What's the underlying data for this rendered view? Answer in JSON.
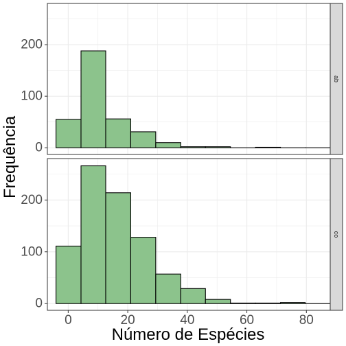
{
  "chart_data": {
    "type": "bar",
    "subtype": "histogram-faceted",
    "xlabel": "Número de Espécies",
    "ylabel": "Frequência",
    "xlim": [
      -7,
      88
    ],
    "ylim": [
      -13,
      280
    ],
    "x_ticks": [
      0,
      20,
      40,
      60,
      80
    ],
    "y_ticks": [
      0,
      100,
      200
    ],
    "bins": [
      [
        -4.1,
        4.3
      ],
      [
        4.3,
        12.6
      ],
      [
        12.6,
        21.0
      ],
      [
        21.0,
        29.4
      ],
      [
        29.4,
        37.8
      ],
      [
        37.8,
        46.1
      ],
      [
        46.1,
        54.5
      ],
      [
        54.5,
        62.9
      ],
      [
        62.9,
        71.3
      ],
      [
        71.3,
        79.6
      ],
      [
        79.6,
        88.0
      ]
    ],
    "grid": true,
    "facet_strip_position": "right",
    "colors": {
      "fill": "#8cc38c",
      "stroke": "#000000",
      "strip": "#d9d9d9",
      "panel_border": "#333333",
      "grid": "#ebebeb"
    },
    "facets": [
      {
        "label": "ab",
        "values": [
          55,
          188,
          56,
          31,
          10,
          2,
          2,
          0,
          1,
          0,
          0
        ]
      },
      {
        "label": "co",
        "values": [
          111,
          266,
          214,
          128,
          57,
          29,
          8,
          1,
          1,
          2,
          0
        ]
      }
    ]
  }
}
